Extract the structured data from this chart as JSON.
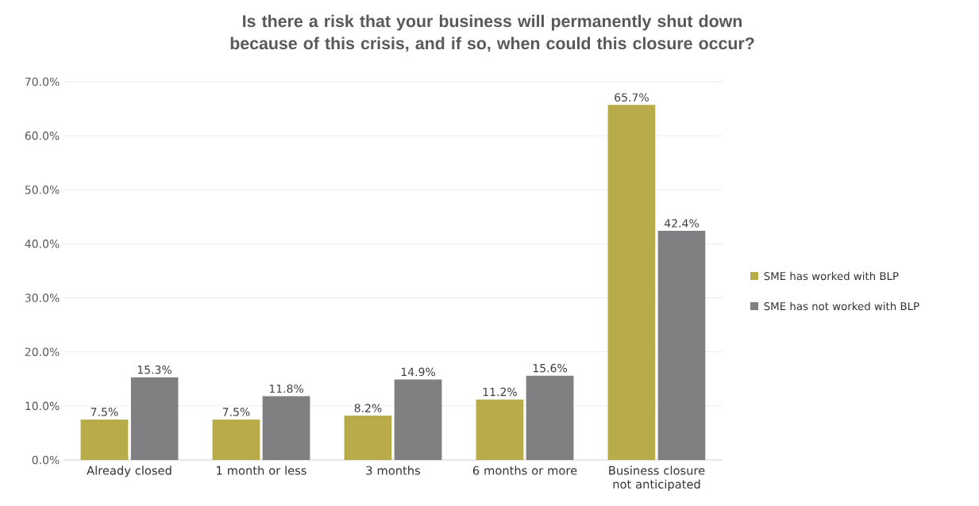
{
  "chart_data": {
    "type": "bar",
    "title": "Is there a risk that your business will permanently shut down because of this crisis, and if so, when could this closure occur?",
    "categories": [
      "Already closed",
      "1 month or less",
      "3 months",
      "6 months or more",
      "Business closure not anticipated"
    ],
    "series": [
      {
        "name": "SME has worked with BLP",
        "color": "#b8ab4a",
        "values": [
          7.5,
          7.5,
          8.2,
          11.2,
          65.7
        ],
        "value_labels": [
          "7.5%",
          "7.5%",
          "8.2%",
          "11.2%",
          "65.7%"
        ]
      },
      {
        "name": "SME has not worked with BLP",
        "color": "#808083",
        "values": [
          15.3,
          11.8,
          14.9,
          15.6,
          42.4
        ],
        "value_labels": [
          "15.3%",
          "11.8%",
          "14.9%",
          "15.6%",
          "42.4%"
        ]
      }
    ],
    "ylim": [
      0,
      70
    ],
    "yticks": [
      {
        "value": 0,
        "label": "0.0%"
      },
      {
        "value": 10,
        "label": "10.0%"
      },
      {
        "value": 20,
        "label": "20.0%"
      },
      {
        "value": 30,
        "label": "30.0%"
      },
      {
        "value": 40,
        "label": "40.0%"
      },
      {
        "value": 50,
        "label": "50.0%"
      },
      {
        "value": 60,
        "label": "60.0%"
      },
      {
        "value": 70,
        "label": "70.0%"
      }
    ],
    "grid": "y",
    "legend": "right"
  }
}
